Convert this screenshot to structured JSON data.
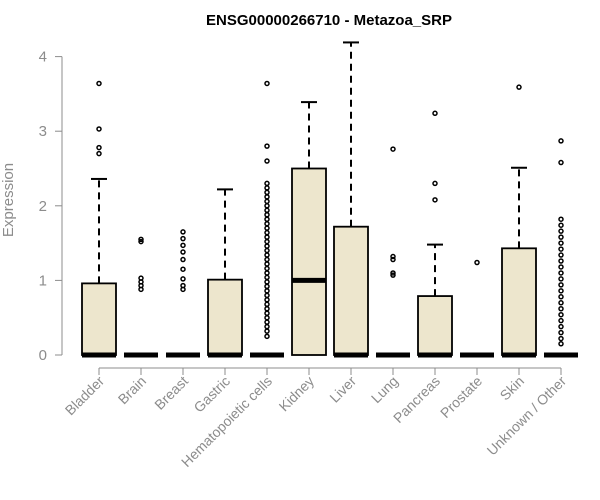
{
  "chart_data": {
    "type": "box",
    "title": "ENSG00000266710 - Metazoa_SRP",
    "xlabel": "",
    "ylabel": "Expression",
    "ylim": [
      0,
      4.2
    ],
    "yticks": [
      0,
      1,
      2,
      3,
      4
    ],
    "box_fill": "#ede6cd",
    "stroke": "#000000",
    "axis_color": "#8c8c8c",
    "categories": [
      "Bladder",
      "Brain",
      "Breast",
      "Gastric",
      "Hematopoietic cells",
      "Kidney",
      "Liver",
      "Lung",
      "Pancreas",
      "Prostate",
      "Skin",
      "Unknown / Other"
    ],
    "boxes": [
      {
        "category": "Bladder",
        "min": 0,
        "q1": 0,
        "median": 0,
        "q3": 0.96,
        "max": 2.36,
        "outliers": [
          2.7,
          2.78,
          3.03,
          3.64
        ]
      },
      {
        "category": "Brain",
        "min": 0,
        "q1": 0,
        "median": 0,
        "q3": 0,
        "max": 0,
        "outliers": [
          0.88,
          0.93,
          0.98,
          1.03,
          1.52,
          1.55
        ]
      },
      {
        "category": "Breast",
        "min": 0,
        "q1": 0,
        "median": 0,
        "q3": 0,
        "max": 0,
        "outliers": [
          0.88,
          0.93,
          1.02,
          1.15,
          1.28,
          1.38,
          1.47,
          1.56,
          1.65
        ]
      },
      {
        "category": "Gastric",
        "min": 0,
        "q1": 0,
        "median": 0,
        "q3": 1.01,
        "max": 2.22,
        "outliers": []
      },
      {
        "category": "Hematopoietic cells",
        "min": 0,
        "q1": 0,
        "median": 0,
        "q3": 0,
        "max": 0,
        "outliers": [
          0.25,
          0.32,
          0.38,
          0.44,
          0.5,
          0.56,
          0.62,
          0.68,
          0.74,
          0.8,
          0.86,
          0.92,
          0.98,
          1.04,
          1.1,
          1.16,
          1.22,
          1.28,
          1.34,
          1.4,
          1.46,
          1.52,
          1.58,
          1.64,
          1.7,
          1.76,
          1.82,
          1.88,
          1.94,
          2.0,
          2.06,
          2.12,
          2.18,
          2.24,
          2.3,
          2.6,
          2.8,
          3.64
        ]
      },
      {
        "category": "Kidney",
        "min": 0,
        "q1": 0,
        "median": 1.0,
        "q3": 2.5,
        "max": 3.39,
        "outliers": []
      },
      {
        "category": "Liver",
        "min": 0,
        "q1": 0,
        "median": 0,
        "q3": 1.72,
        "max": 4.19,
        "outliers": []
      },
      {
        "category": "Lung",
        "min": 0,
        "q1": 0,
        "median": 0,
        "q3": 0,
        "max": 0,
        "outliers": [
          1.07,
          1.1,
          1.28,
          1.32,
          2.76
        ]
      },
      {
        "category": "Pancreas",
        "min": 0,
        "q1": 0,
        "median": 0,
        "q3": 0.79,
        "max": 1.48,
        "outliers": [
          2.08,
          2.3,
          3.24
        ]
      },
      {
        "category": "Prostate",
        "min": 0,
        "q1": 0,
        "median": 0,
        "q3": 0,
        "max": 0,
        "outliers": [
          1.24
        ]
      },
      {
        "category": "Skin",
        "min": 0,
        "q1": 0,
        "median": 0,
        "q3": 1.43,
        "max": 2.51,
        "outliers": [
          3.59
        ]
      },
      {
        "category": "Unknown / Other",
        "min": 0,
        "q1": 0,
        "median": 0,
        "q3": 0,
        "max": 0,
        "outliers": [
          0.15,
          0.22,
          0.3,
          0.38,
          0.46,
          0.54,
          0.62,
          0.7,
          0.78,
          0.86,
          0.94,
          1.02,
          1.1,
          1.18,
          1.26,
          1.34,
          1.42,
          1.5,
          1.58,
          1.66,
          1.74,
          1.82,
          2.58,
          2.87
        ]
      }
    ]
  }
}
